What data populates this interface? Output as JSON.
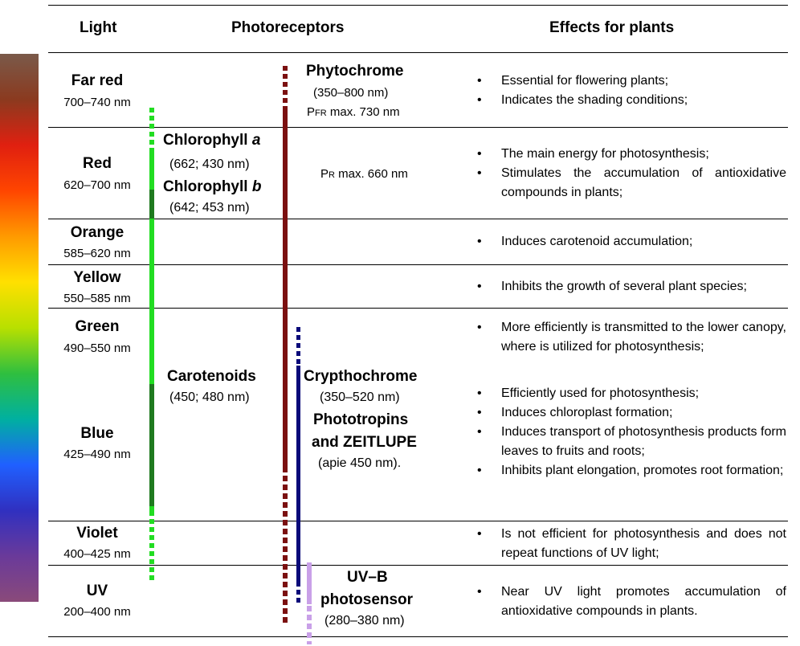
{
  "headers": {
    "light": "Light",
    "photoreceptors": "Photoreceptors",
    "effects": "Effects for plants"
  },
  "spectrum_colors": [
    "#7a5a4a",
    "#8b3a1f",
    "#e02010",
    "#ff4500",
    "#ff9a00",
    "#ffe000",
    "#b8e000",
    "#2fbf3f",
    "#00b0a0",
    "#2060ff",
    "#3030c0",
    "#6a3a9a",
    "#8a4a7a"
  ],
  "lights": [
    {
      "name": "Far red",
      "range": "700–740 nm"
    },
    {
      "name": "Red",
      "range": "620–700 nm"
    },
    {
      "name": "Orange",
      "range": "585–620 nm"
    },
    {
      "name": "Yellow",
      "range": "550–585 nm"
    },
    {
      "name": "Green",
      "range": "490–550 nm"
    },
    {
      "name": "Blue",
      "range": "425–490 nm"
    },
    {
      "name": "Violet",
      "range": "400–425 nm"
    },
    {
      "name": "UV",
      "range": "200–400 nm"
    }
  ],
  "photoreceptors": {
    "phytochrome": {
      "name": "Phytochrome",
      "range": "(350–800 nm)",
      "pfr_prefix": "P",
      "pfr_sub": "FR",
      "pfr_text": " max. 730 nm",
      "pr_prefix": "P",
      "pr_sub": "R",
      "pr_text": " max. 660 nm",
      "color": "#7b1010"
    },
    "chlorophyll": {
      "a_name": "Chlorophyll ",
      "a_letter": "a",
      "a_range": "(662; 430 nm)",
      "b_name": "Chlorophyll ",
      "b_letter": "b",
      "b_range": "(642; 453 nm)",
      "color_light": "#22dd22",
      "color_dark": "#1f7a1f"
    },
    "carotenoids": {
      "name": "Carotenoids",
      "range": "(450; 480 nm)"
    },
    "crypto": {
      "name": "Crypthochrome",
      "range": "(350–520 nm)",
      "photo_line1": "Phototropins",
      "photo_line2": "and ZEITLUPE",
      "photo_range": "(apie 450 nm).",
      "color": "#0a0a7a"
    },
    "uvb": {
      "line1": "UV–B",
      "line2": "photosensor",
      "range": "(280–380 nm)",
      "color": "#c9a0e8"
    }
  },
  "effects": {
    "far_red": [
      "Essential for flowering plants;",
      "Indicates the shading conditions;"
    ],
    "red": [
      "The main energy for photosynthesis;",
      "Stimulates the accumulation of antioxidative compounds in plants;"
    ],
    "orange": [
      "Induces carotenoid accumulation;"
    ],
    "yellow": [
      "Inhibits the growth of several plant species;"
    ],
    "green": [
      "More efficiently is transmitted to the lower canopy, where is utilized for photosynthesis;"
    ],
    "blue": [
      "Efficiently used for photosynthesis;",
      "Induces chloroplast formation;",
      "Induces transport of photosynthesis products form leaves to fruits and roots;",
      "Inhibits plant elongation, promotes root formation;"
    ],
    "violet": [
      "Is not efficient for photosynthesis and does not repeat functions of UV light;"
    ],
    "uv": [
      "Near UV light promotes accumulation of antioxidative compounds in plants."
    ]
  }
}
